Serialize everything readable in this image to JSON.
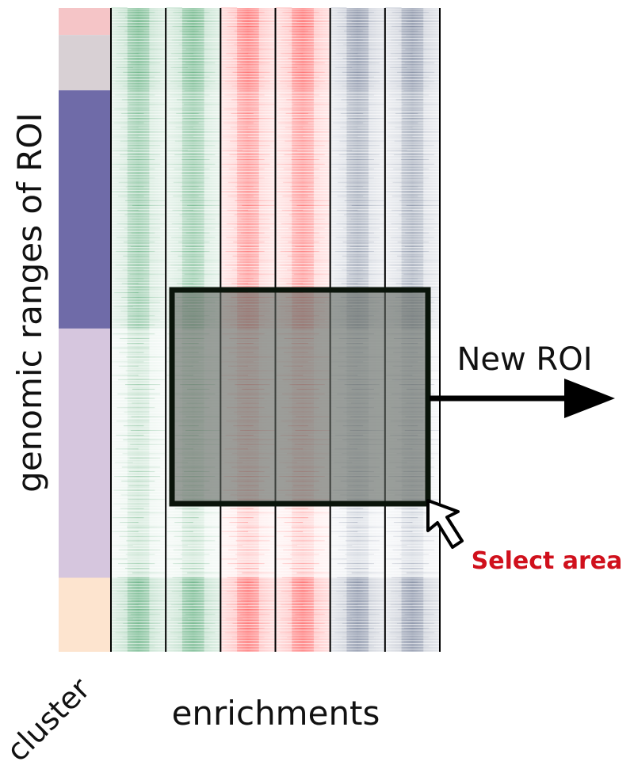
{
  "labels": {
    "y_axis": "genomic ranges of ROI",
    "cluster": "cluster",
    "enrichments": "enrichments",
    "new_roi": "New ROI",
    "select_area": "Select area"
  },
  "clusters": [
    {
      "color": "#f5c5c7",
      "size": 0.042
    },
    {
      "color": "#d8d0d4",
      "size": 0.086
    },
    {
      "color": "#6f6ba8",
      "size": 0.37
    },
    {
      "color": "#d6c6de",
      "size": 0.387
    },
    {
      "color": "#fde4cf",
      "size": 0.115
    }
  ],
  "tracks": [
    {
      "color": "#3a9a5e"
    },
    {
      "color": "#3a9a5e"
    },
    {
      "color": "#ff3c3c"
    },
    {
      "color": "#ff3c3c"
    },
    {
      "color": "#5c6a86"
    },
    {
      "color": "#5c6a86"
    }
  ],
  "colors": {
    "select_text": "#d0101c",
    "selection_fill": "#5f6660",
    "selection_border": "#0a140a",
    "arrow": "#000000"
  }
}
